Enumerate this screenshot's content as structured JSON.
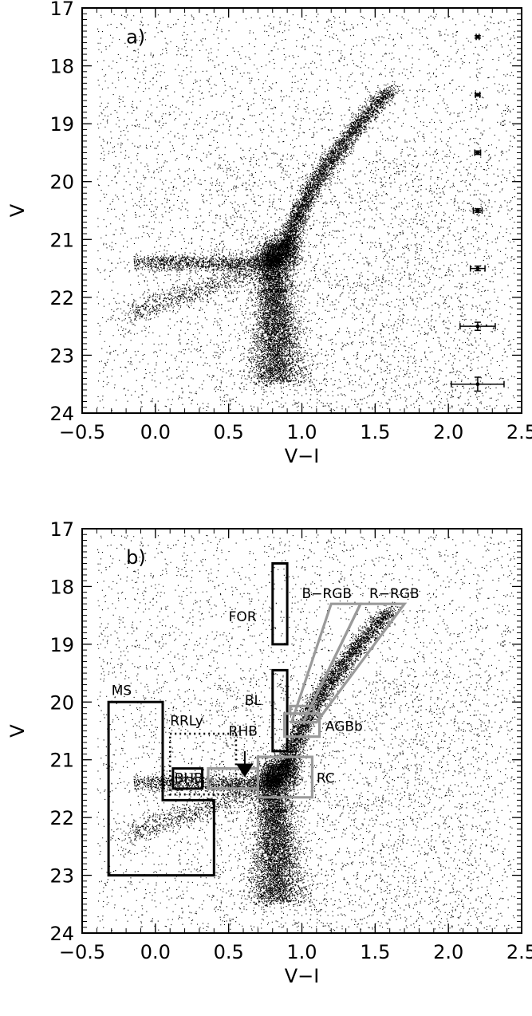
{
  "chart_data": [
    {
      "type": "scatter",
      "panel_label": "a)",
      "xlabel": "V−I",
      "ylabel": "V",
      "xlim": [
        -0.5,
        2.5
      ],
      "ylim": [
        24,
        17
      ],
      "y_inverted": true,
      "xticks": [
        "−0.5",
        "0.0",
        "0.5",
        "1.0",
        "1.5",
        "2.0",
        "2.5"
      ],
      "xtick_values": [
        -0.5,
        0.0,
        0.5,
        1.0,
        1.5,
        2.0,
        2.5
      ],
      "yticks": [
        "17",
        "18",
        "19",
        "20",
        "21",
        "22",
        "23",
        "24"
      ],
      "ytick_values": [
        17,
        18,
        19,
        20,
        21,
        22,
        23,
        24
      ],
      "point_color": "#000000",
      "features": {
        "main_sequence_turnoff": {
          "x": 0.82,
          "y": 21.3
        },
        "red_giant_branch_tip": {
          "x": 1.6,
          "y": 18.4
        },
        "horizontal_branch": {
          "x_from": -0.1,
          "x_to": 0.75,
          "y": 21.4
        }
      },
      "error_bars": [
        {
          "x": 2.2,
          "y": 17.5,
          "xerr": 0.01,
          "yerr": 0.02
        },
        {
          "x": 2.2,
          "y": 18.5,
          "xerr": 0.015,
          "yerr": 0.02
        },
        {
          "x": 2.2,
          "y": 19.5,
          "xerr": 0.02,
          "yerr": 0.03
        },
        {
          "x": 2.2,
          "y": 20.5,
          "xerr": 0.03,
          "yerr": 0.03
        },
        {
          "x": 2.2,
          "y": 21.5,
          "xerr": 0.05,
          "yerr": 0.04
        },
        {
          "x": 2.2,
          "y": 22.5,
          "xerr": 0.12,
          "yerr": 0.07
        },
        {
          "x": 2.2,
          "y": 23.5,
          "xerr": 0.18,
          "yerr": 0.12
        }
      ]
    },
    {
      "type": "scatter",
      "panel_label": "b)",
      "xlabel": "V−I",
      "ylabel": "V",
      "xlim": [
        -0.5,
        2.5
      ],
      "ylim": [
        24,
        17
      ],
      "y_inverted": true,
      "xticks": [
        "−0.5",
        "0.0",
        "0.5",
        "1.0",
        "1.5",
        "2.0",
        "2.5"
      ],
      "xtick_values": [
        -0.5,
        0.0,
        0.5,
        1.0,
        1.5,
        2.0,
        2.5
      ],
      "yticks": [
        "17",
        "18",
        "19",
        "20",
        "21",
        "22",
        "23",
        "24"
      ],
      "ytick_values": [
        17,
        18,
        19,
        20,
        21,
        22,
        23,
        24
      ],
      "point_color": "#000000",
      "colors": {
        "black_box": "#000000",
        "gray_box": "#9a9a9a"
      },
      "regions": [
        {
          "name": "MS",
          "label": "MS",
          "color": "black",
          "style": "solid",
          "points": [
            [
              -0.32,
              20.0
            ],
            [
              0.05,
              20.0
            ],
            [
              0.05,
              21.7
            ],
            [
              0.4,
              21.7
            ],
            [
              0.4,
              23.0
            ],
            [
              -0.32,
              23.0
            ]
          ],
          "label_at": [
            -0.3,
            19.88
          ]
        },
        {
          "name": "RRLy",
          "label": "RRLy",
          "color": "black",
          "style": "dotted",
          "points": [
            [
              0.1,
              20.55
            ],
            [
              0.55,
              20.55
            ],
            [
              0.55,
              21.6
            ],
            [
              0.1,
              21.6
            ]
          ],
          "label_at": [
            0.1,
            20.4
          ]
        },
        {
          "name": "BHB",
          "label": "BHB",
          "color": "black",
          "style": "solid",
          "points": [
            [
              0.12,
              21.15
            ],
            [
              0.32,
              21.15
            ],
            [
              0.32,
              21.5
            ],
            [
              0.12,
              21.5
            ]
          ],
          "label_at": [
            0.13,
            21.4
          ]
        },
        {
          "name": "RHB",
          "label": "RHB",
          "color": "gray",
          "style": "solid",
          "points": [
            [
              0.36,
              21.15
            ],
            [
              0.7,
              21.15
            ],
            [
              0.7,
              21.5
            ],
            [
              0.36,
              21.5
            ]
          ],
          "label_at": [
            0.5,
            20.58
          ]
        },
        {
          "name": "FOR",
          "label": "FOR",
          "color": "black",
          "style": "solid",
          "points": [
            [
              0.8,
              17.6
            ],
            [
              0.9,
              17.6
            ],
            [
              0.9,
              19.0
            ],
            [
              0.8,
              19.0
            ]
          ],
          "label_at": [
            0.5,
            18.6
          ]
        },
        {
          "name": "BL",
          "label": "BL",
          "color": "black",
          "style": "solid",
          "points": [
            [
              0.8,
              19.45
            ],
            [
              0.9,
              19.45
            ],
            [
              0.9,
              20.85
            ],
            [
              0.8,
              20.85
            ]
          ],
          "label_at": [
            0.61,
            20.05
          ]
        },
        {
          "name": "RC",
          "label": "RC",
          "color": "gray",
          "style": "solid",
          "points": [
            [
              0.7,
              20.95
            ],
            [
              1.07,
              20.95
            ],
            [
              1.07,
              21.65
            ],
            [
              0.7,
              21.65
            ]
          ],
          "label_at": [
            1.1,
            21.4
          ]
        },
        {
          "name": "AGBb",
          "label": "AGBb",
          "color": "gray",
          "style": "solid",
          "points": [
            [
              0.88,
              20.2
            ],
            [
              1.12,
              20.2
            ],
            [
              1.12,
              20.6
            ],
            [
              0.88,
              20.6
            ]
          ],
          "label_at": [
            1.16,
            20.5
          ]
        },
        {
          "name": "AGBb-top",
          "label": "",
          "color": "gray",
          "style": "solid",
          "points": [
            [
              0.92,
              20.07
            ],
            [
              1.08,
              20.07
            ],
            [
              1.08,
              20.2
            ],
            [
              0.92,
              20.2
            ]
          ],
          "label_at": null
        },
        {
          "name": "B-RGB",
          "label": "B−RGB",
          "color": "gray",
          "style": "solid",
          "points": [
            [
              0.93,
              20.35
            ],
            [
              1.2,
              18.3
            ],
            [
              1.4,
              18.3
            ],
            [
              1.01,
              20.35
            ]
          ],
          "label_at": [
            1.0,
            18.2
          ]
        },
        {
          "name": "R-RGB",
          "label": "R−RGB",
          "color": "gray",
          "style": "solid",
          "points": [
            [
              1.01,
              20.35
            ],
            [
              1.4,
              18.3
            ],
            [
              1.7,
              18.3
            ],
            [
              1.1,
              20.35
            ]
          ],
          "label_at": [
            1.46,
            18.2
          ]
        }
      ],
      "arrow": {
        "label": "RHB",
        "from": [
          0.61,
          20.85
        ],
        "to": [
          0.61,
          21.3
        ]
      }
    }
  ]
}
